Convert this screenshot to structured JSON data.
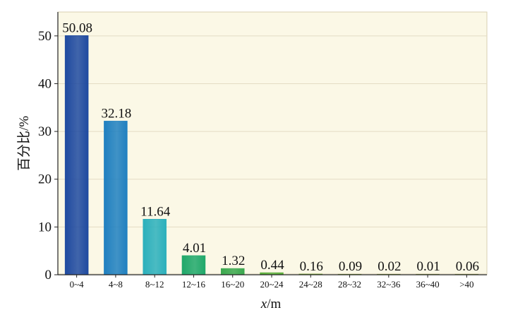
{
  "chart_data": {
    "type": "bar",
    "categories": [
      "0~4",
      "4~8",
      "8~12",
      "12~16",
      "16~20",
      "20~24",
      "24~28",
      "28~32",
      "32~36",
      "36~40",
      ">40"
    ],
    "values": [
      50.08,
      32.18,
      11.64,
      4.01,
      1.32,
      0.44,
      0.16,
      0.09,
      0.02,
      0.01,
      0.06
    ],
    "value_labels": [
      "50.08",
      "32.18",
      "11.64",
      "4.01",
      "1.32",
      "0.44",
      "0.16",
      "0.09",
      "0.02",
      "0.01",
      "0.06"
    ],
    "xlabel": "x/m",
    "ylabel": "百分比/%",
    "ylim": [
      0,
      55
    ],
    "yticks": [
      0,
      10,
      20,
      30,
      40,
      50
    ],
    "grid": true,
    "legend": "none"
  },
  "colors": {
    "plot_background": "#fbf8e6",
    "gridline": "#e4dcc4",
    "bar_colors": [
      "#1f4aa0",
      "#1f80c0",
      "#2bb0bc",
      "#1fa86a",
      "#3aa84e",
      "#5aae3a",
      "#78b03a",
      "#88b040",
      "#90b048",
      "#98b050",
      "#9cb054"
    ]
  }
}
